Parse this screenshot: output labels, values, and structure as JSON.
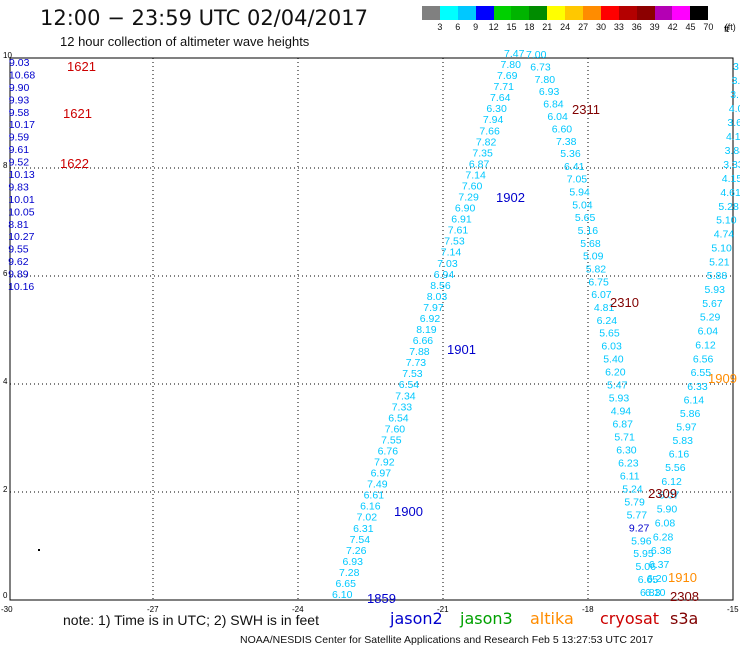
{
  "header": {
    "title": "12:00  −  23:59  UTC  02/04/2017",
    "subtitle": "12 hour collection of altimeter wave heights"
  },
  "colorbar": {
    "colors": [
      "#808080",
      "#00ffff",
      "#00c8ff",
      "#0000ff",
      "#00d000",
      "#00b400",
      "#008c00",
      "#ffff00",
      "#ffc800",
      "#ff8c00",
      "#ff0000",
      "#b40000",
      "#8c0000",
      "#b400b4",
      "#ff00ff",
      "#000000"
    ],
    "labels": [
      "3",
      "6",
      "9",
      "12",
      "15",
      "18",
      "21",
      "24",
      "27",
      "30",
      "33",
      "36",
      "39",
      "42",
      "45",
      "70",
      "(ft)"
    ]
  },
  "map": {
    "x_ticks": [
      "-30",
      "-27",
      "-24",
      "-21",
      "-18",
      "-15"
    ],
    "y_ticks": [
      "0",
      "2",
      "4",
      "6",
      "8",
      "10"
    ],
    "unit_label": "ft"
  },
  "colors": {
    "jason2": "#0000cc",
    "jason3": "#00a000",
    "altika": "#ff8c00",
    "cryosat": "#cc0000",
    "s3a": "#800000",
    "cyan": "#00c8ff",
    "lightblue": "#1e96ff"
  },
  "satellite_tracks": [
    {
      "name": "track-jason2-west",
      "color": "jason2",
      "labels": [
        "9.03",
        "10.68",
        "9.90",
        "9.93",
        "9.58",
        "10.17",
        "9.59",
        "9.61",
        "9.52",
        "10.13",
        "9.83",
        "10.01",
        "10.05",
        "8.81",
        "10.27",
        "9.55",
        "9.62",
        "9.89",
        "10.16"
      ]
    },
    {
      "name": "track-cyan-ascending",
      "color": "cyan",
      "labels": [
        "6.10",
        "6.65",
        "7.28",
        "6.93",
        "7.26",
        "7.54",
        "6.31",
        "7.02",
        "6.16",
        "6.61",
        "7.49",
        "6.97",
        "7.92",
        "6.76",
        "7.55",
        "7.60",
        "6.54",
        "7.33",
        "7.34",
        "6.54",
        "7.53",
        "7.73",
        "7.88",
        "6.66",
        "8.19",
        "6.92",
        "7.97",
        "8.03",
        "8.56",
        "6.94",
        "7.03",
        "7.14",
        "7.53",
        "7.61",
        "6.91",
        "6.90",
        "7.29",
        "7.60",
        "7.14",
        "6.87",
        "7.35",
        "7.82",
        "7.66",
        "7.94",
        "6.30",
        "7.64",
        "7.71",
        "7.69",
        "7.80",
        "7.47"
      ]
    },
    {
      "name": "track-cyan-descending",
      "color": "cyan",
      "labels": [
        "7.00",
        "6.73",
        "7.80",
        "6.93",
        "6.84",
        "6.04",
        "6.60",
        "7.38",
        "5.36",
        "6.41",
        "7.05",
        "5.94",
        "5.04",
        "5.65",
        "5.16",
        "5.68",
        "5.09",
        "5.82",
        "6.75",
        "6.07",
        "4.81",
        "6.24",
        "5.65",
        "6.03",
        "5.40",
        "6.20",
        "5.47",
        "5.93",
        "4.94",
        "6.87",
        "5.71",
        "6.30",
        "6.23",
        "6.11",
        "5.24",
        "5.79",
        "5.77",
        "9.27",
        "5.96",
        "5.95",
        "5.06",
        "6.65",
        "6.83"
      ]
    },
    {
      "name": "track-cyan-east",
      "color": "cyan",
      "labels": [
        "6.10",
        "6.20",
        "6.37",
        "6.38",
        "6.28",
        "6.08",
        "5.90",
        "6.07",
        "6.12",
        "5.56",
        "6.16",
        "5.83",
        "5.97",
        "5.86",
        "6.14",
        "6.33",
        "6.55",
        "6.56",
        "6.12",
        "6.04",
        "5.29",
        "5.67",
        "5.93",
        "5.88",
        "5.21",
        "5.10",
        "4.74",
        "5.10",
        "5.28",
        "4.61",
        "4.15",
        "3.33",
        "3.84",
        "4.17",
        "3.6",
        "4.0",
        "3.",
        "3.",
        "3"
      ]
    }
  ],
  "pass_labels": [
    {
      "text": "1621",
      "color": "cryosat"
    },
    {
      "text": "1621",
      "color": "cryosat"
    },
    {
      "text": "1622",
      "color": "cryosat"
    },
    {
      "text": "2311",
      "color": "s3a"
    },
    {
      "text": "1902",
      "color": "jason2"
    },
    {
      "text": "2310",
      "color": "s3a"
    },
    {
      "text": "1901",
      "color": "jason2"
    },
    {
      "text": "1909",
      "color": "altika"
    },
    {
      "text": "2309",
      "color": "s3a"
    },
    {
      "text": "1900",
      "color": "jason2"
    },
    {
      "text": "1910",
      "color": "altika"
    },
    {
      "text": "1859",
      "color": "jason2"
    },
    {
      "text": "2308",
      "color": "s3a"
    }
  ],
  "footer": {
    "note": "note:  1) Time is in UTC;  2) SWH is in feet",
    "legend": [
      {
        "label": "jason2",
        "color": "jason2"
      },
      {
        "label": "jason3",
        "color": "jason3"
      },
      {
        "label": "altika",
        "color": "altika"
      },
      {
        "label": "cryosat",
        "color": "cryosat"
      },
      {
        "label": "s3a",
        "color": "s3a"
      }
    ],
    "credit": "NOAA/NESDIS Center for Satellite Applications and Research     Feb  5  13:27:53  UTC  2017"
  }
}
